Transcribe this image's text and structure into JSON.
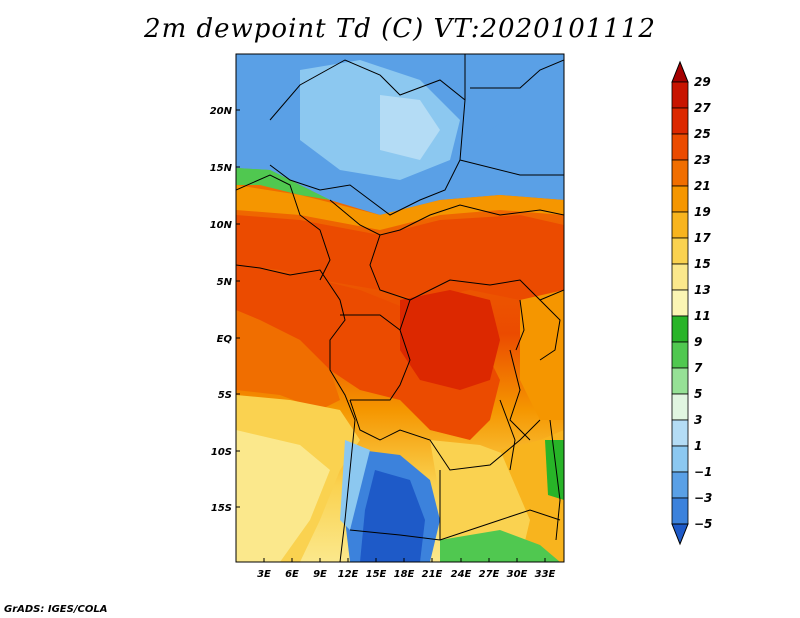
{
  "title": "2m dewpoint Td (C) VT:2020101112",
  "credit": "GrADS: IGES/COLA",
  "map": {
    "lat_labels": [
      "20N",
      "15N",
      "10N",
      "5N",
      "EQ",
      "5S",
      "10S",
      "15S"
    ],
    "lon_labels": [
      "3E",
      "6E",
      "9E",
      "12E",
      "15E",
      "18E",
      "21E",
      "24E",
      "27E",
      "30E",
      "33E"
    ]
  },
  "colorbar": {
    "labels": [
      "29",
      "27",
      "25",
      "23",
      "21",
      "19",
      "17",
      "15",
      "13",
      "11",
      "9",
      "7",
      "5",
      "3",
      "1",
      "−1",
      "−3",
      "−5"
    ],
    "colors": [
      "#a50000",
      "#c81400",
      "#dc2800",
      "#eb4b00",
      "#f06e00",
      "#f59600",
      "#f8b41e",
      "#fad250",
      "#fbe88c",
      "#fbf5b4",
      "#28b428",
      "#50c850",
      "#96e196",
      "#e1f5e1",
      "#b4dcf5",
      "#8cc8f0",
      "#5aa0e6",
      "#3c82dc",
      "#1e5ac8"
    ]
  }
}
